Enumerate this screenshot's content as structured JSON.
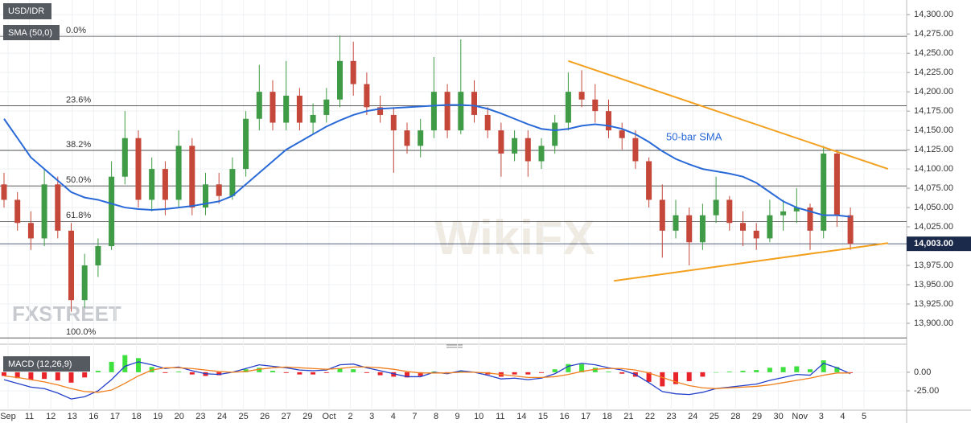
{
  "chart_data": {
    "type": "candlestick",
    "symbol": "USD/IDR",
    "indicator_label": "SMA (50,0)",
    "sma_annotation": "50-bar SMA",
    "watermarks": [
      "FXSTREET",
      "WikiFX"
    ],
    "up_color": "#3f9b45",
    "down_color": "#c4473a",
    "sma_color": "#2a6ad8",
    "trend_color": "#f2a01e",
    "ylim": [
      13876,
      14319
    ],
    "yticks": [
      {
        "value": 13900,
        "label": "13,900.00"
      },
      {
        "value": 13925,
        "label": "13,925.00"
      },
      {
        "value": 13950,
        "label": "13,950.00"
      },
      {
        "value": 13975,
        "label": "13,975.00"
      },
      {
        "value": 14000,
        "label": "14,000.00"
      },
      {
        "value": 14025,
        "label": "14,025.00"
      },
      {
        "value": 14050,
        "label": "14,050.00"
      },
      {
        "value": 14075,
        "label": "14,075.00"
      },
      {
        "value": 14100,
        "label": "14,100.00"
      },
      {
        "value": 14125,
        "label": "14,125.00"
      },
      {
        "value": 14150,
        "label": "14,150.00"
      },
      {
        "value": 14175,
        "label": "14,175.00"
      },
      {
        "value": 14200,
        "label": "14,200.00"
      },
      {
        "value": 14225,
        "label": "14,225.00"
      },
      {
        "value": 14250,
        "label": "14,250.00"
      },
      {
        "value": 14275,
        "label": "14,275.00"
      },
      {
        "value": 14300,
        "label": "14,300.00"
      }
    ],
    "grid": true,
    "last_price": {
      "value": 14003,
      "label": "14,003.00"
    },
    "categories": [
      "Sep",
      "11",
      "12",
      "13",
      "16",
      "17",
      "18",
      "19",
      "20",
      "23",
      "24",
      "25",
      "26",
      "27",
      "29",
      "Oct",
      "2",
      "3",
      "4",
      "7",
      "8",
      "9",
      "10",
      "11",
      "14",
      "15",
      "16",
      "17",
      "18",
      "21",
      "22",
      "23",
      "24",
      "25",
      "28",
      "29",
      "30",
      "Nov",
      "3",
      "4",
      "5"
    ],
    "fib_levels": [
      {
        "label": "0.0%",
        "value": 14272
      },
      {
        "label": "23.6%",
        "value": 14182
      },
      {
        "label": "38.2%",
        "value": 14124
      },
      {
        "label": "50.0%",
        "value": 14078
      },
      {
        "label": "61.8%",
        "value": 14032
      },
      {
        "label": "100.0%",
        "value": 13881
      }
    ],
    "trendlines": [
      {
        "x": [
          42.0,
          65.8
        ],
        "values": [
          14240,
          14100
        ]
      },
      {
        "x": [
          45.4,
          65.8
        ],
        "values": [
          13955,
          14004
        ]
      }
    ],
    "candles": [
      [
        14080,
        14095,
        14050,
        14060
      ],
      [
        14060,
        14070,
        14020,
        14030
      ],
      [
        14030,
        14045,
        13995,
        14010
      ],
      [
        14010,
        14100,
        14000,
        14080
      ],
      [
        14080,
        14090,
        14010,
        14020
      ],
      [
        14020,
        14030,
        13915,
        13930
      ],
      [
        13930,
        13990,
        13920,
        13975
      ],
      [
        13975,
        14010,
        13960,
        14000
      ],
      [
        14000,
        14110,
        13995,
        14090
      ],
      [
        14090,
        14175,
        14080,
        14140
      ],
      [
        14140,
        14150,
        14050,
        14060
      ],
      [
        14060,
        14115,
        14045,
        14100
      ],
      [
        14100,
        14110,
        14040,
        14060
      ],
      [
        14060,
        14150,
        14050,
        14130
      ],
      [
        14130,
        14140,
        14040,
        14050
      ],
      [
        14050,
        14095,
        14040,
        14080
      ],
      [
        14080,
        14095,
        14055,
        14065
      ],
      [
        14065,
        14115,
        14060,
        14100
      ],
      [
        14100,
        14175,
        14090,
        14165
      ],
      [
        14165,
        14235,
        14150,
        14200
      ],
      [
        14200,
        14215,
        14150,
        14160
      ],
      [
        14160,
        14240,
        14150,
        14195
      ],
      [
        14195,
        14205,
        14150,
        14160
      ],
      [
        14160,
        14185,
        14145,
        14170
      ],
      [
        14170,
        14205,
        14160,
        14190
      ],
      [
        14190,
        14273,
        14180,
        14240
      ],
      [
        14240,
        14265,
        14195,
        14210
      ],
      [
        14210,
        14225,
        14170,
        14180
      ],
      [
        14180,
        14195,
        14160,
        14170
      ],
      [
        14170,
        14180,
        14095,
        14150
      ],
      [
        14150,
        14160,
        14120,
        14130
      ],
      [
        14130,
        14165,
        14115,
        14150
      ],
      [
        14150,
        14245,
        14140,
        14200
      ],
      [
        14200,
        14210,
        14140,
        14150
      ],
      [
        14150,
        14268,
        14145,
        14200
      ],
      [
        14200,
        14215,
        14160,
        14170
      ],
      [
        14170,
        14180,
        14140,
        14150
      ],
      [
        14150,
        14160,
        14090,
        14120
      ],
      [
        14120,
        14150,
        14110,
        14140
      ],
      [
        14140,
        14150,
        14090,
        14110
      ],
      [
        14110,
        14140,
        14100,
        14130
      ],
      [
        14130,
        14170,
        14120,
        14160
      ],
      [
        14160,
        14225,
        14150,
        14200
      ],
      [
        14200,
        14228,
        14180,
        14190
      ],
      [
        14190,
        14210,
        14160,
        14175
      ],
      [
        14175,
        14190,
        14140,
        14150
      ],
      [
        14150,
        14160,
        14125,
        14140
      ],
      [
        14140,
        14150,
        14100,
        14110
      ],
      [
        14110,
        14115,
        14050,
        14060
      ],
      [
        14060,
        14080,
        13985,
        14020
      ],
      [
        14020,
        14060,
        14010,
        14040
      ],
      [
        14040,
        14050,
        13975,
        14005
      ],
      [
        14005,
        14055,
        13995,
        14040
      ],
      [
        14040,
        14090,
        14030,
        14060
      ],
      [
        14060,
        14065,
        14020,
        14030
      ],
      [
        14030,
        14045,
        14000,
        14020
      ],
      [
        14020,
        14030,
        13995,
        14010
      ],
      [
        14010,
        14060,
        14005,
        14040
      ],
      [
        14040,
        14060,
        14020,
        14045
      ],
      [
        14045,
        14075,
        14030,
        14050
      ],
      [
        14050,
        14055,
        13995,
        14020
      ],
      [
        14020,
        14130,
        14010,
        14120
      ],
      [
        14120,
        14125,
        14025,
        14040
      ],
      [
        14040,
        14050,
        13995,
        14003
      ]
    ],
    "sma": [
      14165,
      14140,
      14115,
      14100,
      14085,
      14070,
      14063,
      14060,
      14055,
      14050,
      14048,
      14047,
      14048,
      14050,
      14052,
      14055,
      14058,
      14065,
      14080,
      14095,
      14110,
      14125,
      14135,
      14145,
      14155,
      14163,
      14170,
      14175,
      14178,
      14179,
      14180,
      14181,
      14182,
      14183,
      14183,
      14182,
      14178,
      14172,
      14165,
      14158,
      14152,
      14150,
      14152,
      14156,
      14158,
      14156,
      14152,
      14145,
      14135,
      14123,
      14113,
      14106,
      14100,
      14097,
      14094,
      14090,
      14082,
      14070,
      14058,
      14050,
      14045,
      14040,
      14040,
      14038
    ],
    "macd": {
      "label": "MACD (12,26,9)",
      "ylim": [
        -51,
        28
      ],
      "yticks": [
        {
          "value": 0,
          "label": "0.00"
        },
        {
          "value": -25,
          "label": "-25.00"
        }
      ],
      "macd_color": "#2440c8",
      "signal_color": "#f07f1e",
      "pos_color": "#3ee03e",
      "neg_color": "#e8242a",
      "macd_line": [
        -10,
        -15,
        -20,
        -22,
        -28,
        -36,
        -33,
        -25,
        -10,
        8,
        14,
        10,
        5,
        7,
        2,
        -2,
        -3,
        0,
        5,
        10,
        8,
        6,
        3,
        2,
        3,
        10,
        11,
        6,
        2,
        -2,
        -6,
        -6,
        0,
        -2,
        2,
        0,
        -4,
        -9,
        -8,
        -10,
        -8,
        -2,
        8,
        12,
        10,
        6,
        3,
        -3,
        -14,
        -26,
        -29,
        -30,
        -27,
        -22,
        -20,
        -18,
        -16,
        -11,
        -7,
        -3,
        -4,
        12,
        6,
        -2
      ],
      "signal_line": [
        -5,
        -7,
        -10,
        -13,
        -17,
        -22,
        -26,
        -27,
        -24,
        -15,
        -5,
        3,
        6,
        6,
        5,
        3,
        1,
        0,
        1,
        4,
        6,
        7,
        6,
        5,
        4,
        5,
        7,
        7,
        6,
        4,
        1,
        -1,
        -1,
        -1,
        0,
        0,
        -1,
        -3,
        -5,
        -7,
        -7,
        -6,
        -3,
        1,
        4,
        5,
        5,
        3,
        -1,
        -7,
        -13,
        -18,
        -21,
        -22,
        -21,
        -20,
        -19,
        -17,
        -14,
        -11,
        -8,
        -4,
        -1,
        -1
      ],
      "histogram": [
        -5,
        -8,
        -10,
        -9,
        -11,
        -14,
        -7,
        2,
        14,
        23,
        19,
        7,
        -1,
        1,
        -3,
        -5,
        -4,
        0,
        4,
        6,
        2,
        -1,
        -3,
        -3,
        -1,
        5,
        4,
        -1,
        -4,
        -6,
        -7,
        -5,
        1,
        -1,
        2,
        0,
        -3,
        -6,
        -3,
        -3,
        -1,
        4,
        11,
        11,
        6,
        1,
        -2,
        -6,
        -13,
        -19,
        -16,
        -12,
        -6,
        0,
        1,
        2,
        3,
        6,
        7,
        8,
        4,
        16,
        7,
        -1
      ]
    }
  }
}
